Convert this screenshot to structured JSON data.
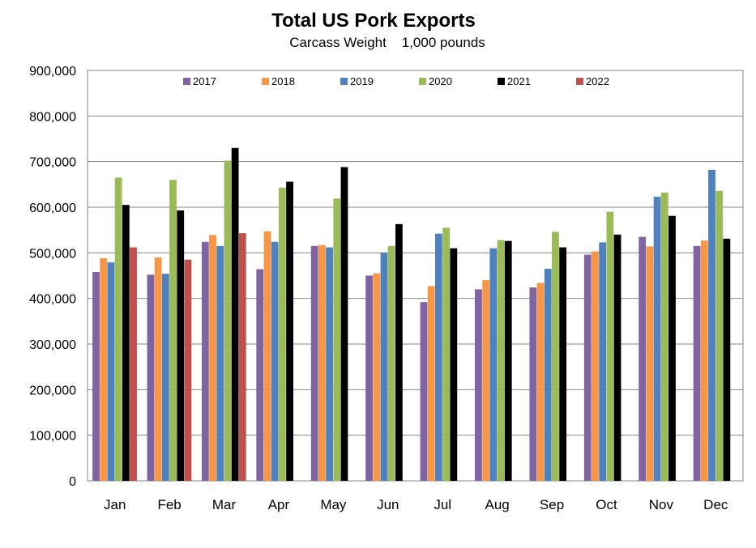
{
  "chart_data": {
    "type": "bar",
    "title": "Total US Pork Exports",
    "subtitle": "Carcass Weight    1,000 pounds",
    "xlabel": "",
    "ylabel": "",
    "ylim": [
      0,
      900000
    ],
    "yticks": [
      "0",
      "100,000",
      "200,000",
      "300,000",
      "400,000",
      "500,000",
      "600,000",
      "700,000",
      "800,000",
      "900,000"
    ],
    "ytick_values": [
      0,
      100000,
      200000,
      300000,
      400000,
      500000,
      600000,
      700000,
      800000,
      900000
    ],
    "grid": true,
    "legend_position": "top",
    "categories": [
      "Jan",
      "Feb",
      "Mar",
      "Apr",
      "May",
      "Jun",
      "Jul",
      "Aug",
      "Sep",
      "Oct",
      "Nov",
      "Dec"
    ],
    "series": [
      {
        "name": "2017",
        "color": "#8064a2",
        "values": [
          458000,
          452000,
          524000,
          464000,
          515000,
          450000,
          392000,
          420000,
          424000,
          496000,
          535000,
          515000
        ]
      },
      {
        "name": "2018",
        "color": "#f79646",
        "values": [
          488000,
          490000,
          539000,
          547000,
          517000,
          455000,
          427000,
          440000,
          434000,
          503000,
          514000,
          527000
        ]
      },
      {
        "name": "2019",
        "color": "#4f81bd",
        "values": [
          479000,
          454000,
          515000,
          524000,
          512000,
          500000,
          542000,
          510000,
          465000,
          523000,
          623000,
          682000
        ]
      },
      {
        "name": "2020",
        "color": "#9bbb59",
        "values": [
          665000,
          660000,
          702000,
          643000,
          619000,
          515000,
          555000,
          528000,
          546000,
          590000,
          632000,
          636000
        ]
      },
      {
        "name": "2021",
        "color": "#000000",
        "values": [
          605000,
          593000,
          730000,
          656000,
          688000,
          563000,
          510000,
          526000,
          512000,
          540000,
          581000,
          531000
        ]
      },
      {
        "name": "2022",
        "color": "#c0504d",
        "values": [
          512000,
          485000,
          543000,
          null,
          null,
          null,
          null,
          null,
          null,
          null,
          null,
          null
        ]
      }
    ]
  }
}
